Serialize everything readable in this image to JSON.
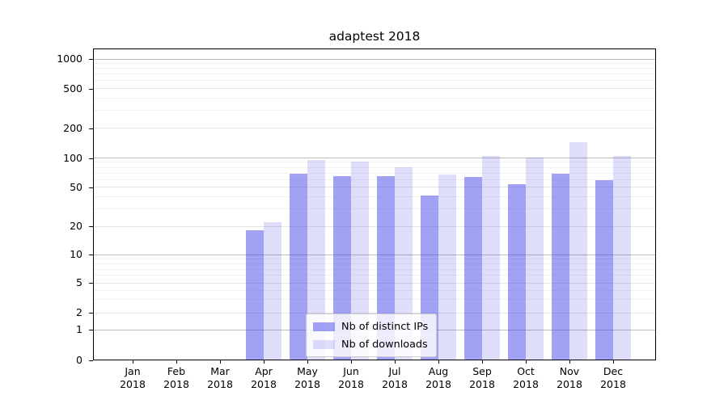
{
  "title": "adaptest 2018",
  "chart_data": {
    "type": "bar",
    "title": "adaptest 2018",
    "yscale": "symlog",
    "grid": true,
    "legend_position": "lower center",
    "categories": [
      "Jan 2018",
      "Feb 2018",
      "Mar 2018",
      "Apr 2018",
      "May 2018",
      "Jun 2018",
      "Jul 2018",
      "Aug 2018",
      "Sep 2018",
      "Oct 2018",
      "Nov 2018",
      "Dec 2018"
    ],
    "yticks": [
      0,
      1,
      2,
      5,
      10,
      20,
      50,
      100,
      200,
      500,
      1000
    ],
    "ylim": [
      0,
      1300
    ],
    "series": [
      {
        "name": "Nb of distinct IPs",
        "color": "rgba(70,70,235,0.5)",
        "color_hex_on_white": "#a2a2f5",
        "values": [
          0,
          0,
          0,
          18,
          69,
          65,
          65,
          41,
          64,
          54,
          69,
          59
        ]
      },
      {
        "name": "Nb of downloads",
        "color": "rgba(70,70,235,0.18)",
        "color_hex_on_white": "#ddddfb",
        "values": [
          0,
          0,
          0,
          22,
          96,
          91,
          80,
          68,
          104,
          101,
          145,
          105
        ]
      }
    ]
  }
}
